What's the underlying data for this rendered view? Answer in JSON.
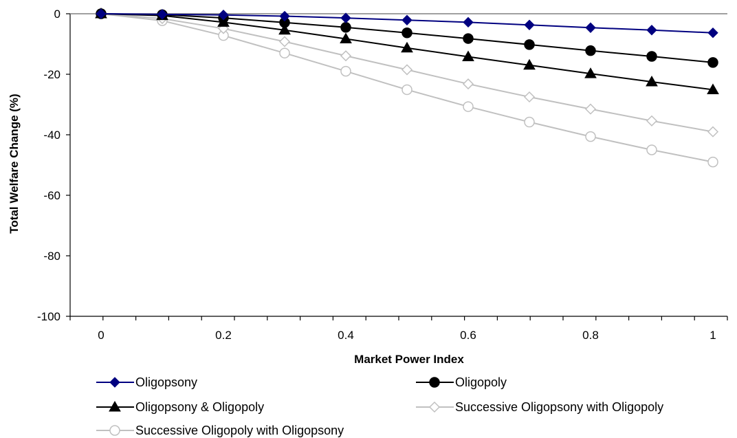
{
  "chart_data": {
    "type": "line",
    "xlabel": "Market Power Index",
    "ylabel": "Total Welfare Change (%)",
    "xlim": [
      0,
      1
    ],
    "ylim": [
      -100,
      0
    ],
    "x_ticks": [
      "0",
      "0.2",
      "0.4",
      "0.6",
      "0.8",
      "1"
    ],
    "y_ticks": [
      "0",
      "-20",
      "-40",
      "-60",
      "-80",
      "-100"
    ],
    "x": [
      0,
      0.1,
      0.2,
      0.3,
      0.4,
      0.5,
      0.6,
      0.7,
      0.8,
      0.9,
      1.0
    ],
    "grid": false,
    "legend_position": "bottom",
    "series": [
      {
        "name": "Oligopsony",
        "color": "#000080",
        "marker": "diamond-filled",
        "values": [
          0,
          -0.2,
          -0.4,
          -0.8,
          -1.4,
          -2.1,
          -2.8,
          -3.7,
          -4.6,
          -5.4,
          -6.3
        ]
      },
      {
        "name": "Oligopoly",
        "color": "#000000",
        "marker": "circle-filled",
        "values": [
          0,
          -0.3,
          -1.4,
          -2.9,
          -4.5,
          -6.3,
          -8.2,
          -10.2,
          -12.2,
          -14.1,
          -16.1
        ]
      },
      {
        "name": "Oligopsony & Oligopoly",
        "color": "#000000",
        "marker": "triangle-filled",
        "values": [
          0,
          -0.6,
          -2.8,
          -5.4,
          -8.3,
          -11.3,
          -14.2,
          -17.0,
          -19.8,
          -22.5,
          -25.1
        ]
      },
      {
        "name": "Successive Oligopsony with Oligopoly",
        "color": "#c0c0c0",
        "marker": "diamond-open",
        "values": [
          0,
          -1.6,
          -4.9,
          -9.2,
          -13.9,
          -18.5,
          -23.2,
          -27.5,
          -31.5,
          -35.4,
          -39.0
        ]
      },
      {
        "name": "Successive Oligopoly with Oligopsony",
        "color": "#c0c0c0",
        "marker": "circle-open",
        "values": [
          0,
          -2.3,
          -7.2,
          -13.0,
          -19.0,
          -25.1,
          -30.7,
          -35.8,
          -40.6,
          -45.0,
          -49.0
        ]
      }
    ]
  }
}
